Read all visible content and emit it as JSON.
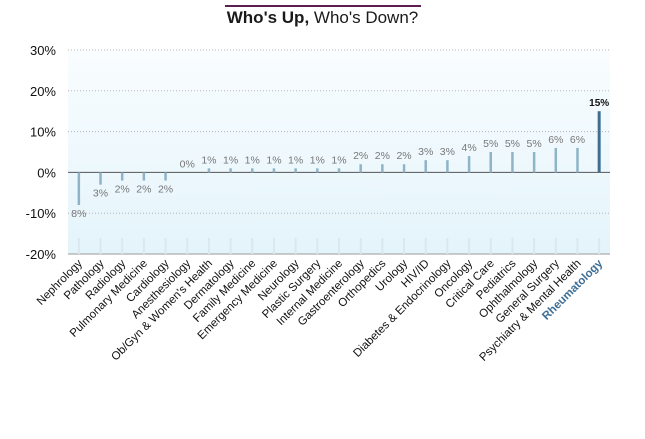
{
  "title": {
    "bold": "Who's Up,",
    "rest": " Who's Down?"
  },
  "colors": {
    "plot_bg_top": "#f9fdff",
    "plot_bg_bottom": "#e4f4fb",
    "bar": "#8fb4c7",
    "bar_highlight": "#3f6f90",
    "highlight_label": "#3d6e96",
    "label": "#777777",
    "axis_text": "#111111",
    "title_rule": "#5a1e4f"
  },
  "chart_data": {
    "type": "bar",
    "title": "Who's Up, Who's Down?",
    "xlabel": "",
    "ylabel": "",
    "ylim": [
      -20,
      30
    ],
    "yticks": [
      30,
      20,
      10,
      0,
      -10,
      -20
    ],
    "ytick_labels": [
      "30%",
      "20%",
      "10%",
      "0%",
      "-10%",
      "-20%"
    ],
    "grid": true,
    "highlight": "Rheumatology",
    "categories": [
      "Nephrology",
      "Pathology",
      "Radiology",
      "Pulmonary Medicine",
      "Cardiology",
      "Anesthesiology",
      "Ob/Gyn & Women's Health",
      "Dermatology",
      "Family Medicine",
      "Emergency Medicine",
      "Neurology",
      "Plastic Surgery",
      "Internal Medicine",
      "Gastroenterology",
      "Orthopedics",
      "Urology",
      "HIV/ID",
      "Diabetes & Endocrinology",
      "Oncology",
      "Critical Care",
      "Pediatrics",
      "Ophthalmology",
      "General Surgery",
      "Psychiatry & Mental Health",
      "Rheumatology"
    ],
    "values": [
      -8,
      -3,
      -2,
      -2,
      -2,
      0,
      1,
      1,
      1,
      1,
      1,
      1,
      1,
      2,
      2,
      2,
      3,
      3,
      4,
      5,
      5,
      5,
      6,
      6,
      15
    ],
    "value_labels": [
      "8%",
      "3%",
      "2%",
      "2%",
      "2%",
      "0%",
      "1%",
      "1%",
      "1%",
      "1%",
      "1%",
      "1%",
      "1%",
      "2%",
      "2%",
      "2%",
      "3%",
      "3%",
      "4%",
      "5%",
      "5%",
      "5%",
      "6%",
      "6%",
      "15%"
    ]
  }
}
